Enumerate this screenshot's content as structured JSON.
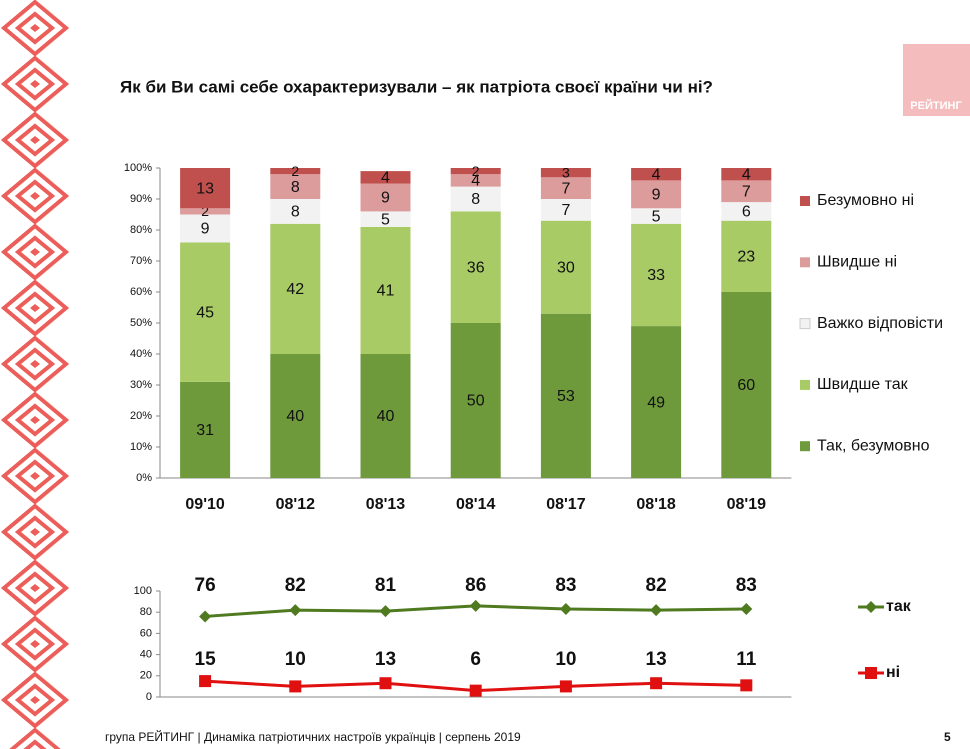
{
  "logo": "РЕЙТИНГ",
  "footer": "група РЕЙТИНГ | Динаміка патріотичних настроїв українців | серпень  2019",
  "page_number": "5",
  "chart_data": [
    {
      "type": "bar",
      "stacked": true,
      "title": "Як  би Ви самі себе охарактеризували – як патріота своєї країни чи ні?",
      "categories": [
        "09'10",
        "08'12",
        "08'13",
        "08'14",
        "08'17",
        "08'18",
        "08'19"
      ],
      "series": [
        {
          "name": "Так, безумовно",
          "color": "#6e9a3c",
          "values": [
            31,
            40,
            40,
            50,
            53,
            49,
            60
          ]
        },
        {
          "name": "Швидше так",
          "color": "#a8cb66",
          "values": [
            45,
            42,
            41,
            36,
            30,
            33,
            23
          ]
        },
        {
          "name": "Важко відповісти",
          "color": "#f2f2f2",
          "values": [
            9,
            8,
            5,
            8,
            7,
            5,
            6
          ]
        },
        {
          "name": "Швидше ні",
          "color": "#dc9c9c",
          "values": [
            2,
            8,
            9,
            4,
            7,
            9,
            7
          ]
        },
        {
          "name": "Безумовно ні",
          "color": "#c0504d",
          "values": [
            13,
            2,
            4,
            2,
            3,
            4,
            4
          ]
        }
      ],
      "ylim": [
        0,
        100
      ],
      "yticks": [
        {
          "value": 0,
          "label": "0%"
        },
        {
          "value": 10,
          "label": "10%"
        },
        {
          "value": 20,
          "label": "20%"
        },
        {
          "value": 30,
          "label": "30%"
        },
        {
          "value": 40,
          "label": "40%"
        },
        {
          "value": 50,
          "label": "50%"
        },
        {
          "value": 60,
          "label": "60%"
        },
        {
          "value": 70,
          "label": "70%"
        },
        {
          "value": 80,
          "label": "80%"
        },
        {
          "value": 90,
          "label": "90%"
        },
        {
          "value": 100,
          "label": "100%"
        }
      ],
      "grid": false,
      "legend": "right"
    },
    {
      "type": "line",
      "series": [
        {
          "name": "так",
          "color": "#4f7a1f",
          "marker": "diamond",
          "values": [
            76,
            82,
            81,
            86,
            83,
            82,
            83
          ]
        },
        {
          "name": "ні",
          "color": "#e01010",
          "marker": "square",
          "values": [
            15,
            10,
            13,
            6,
            10,
            13,
            11
          ]
        }
      ],
      "ylim": [
        0,
        100
      ],
      "yticks": [
        0,
        20,
        40,
        60,
        80,
        100
      ],
      "grid": false,
      "legend": "right"
    }
  ]
}
